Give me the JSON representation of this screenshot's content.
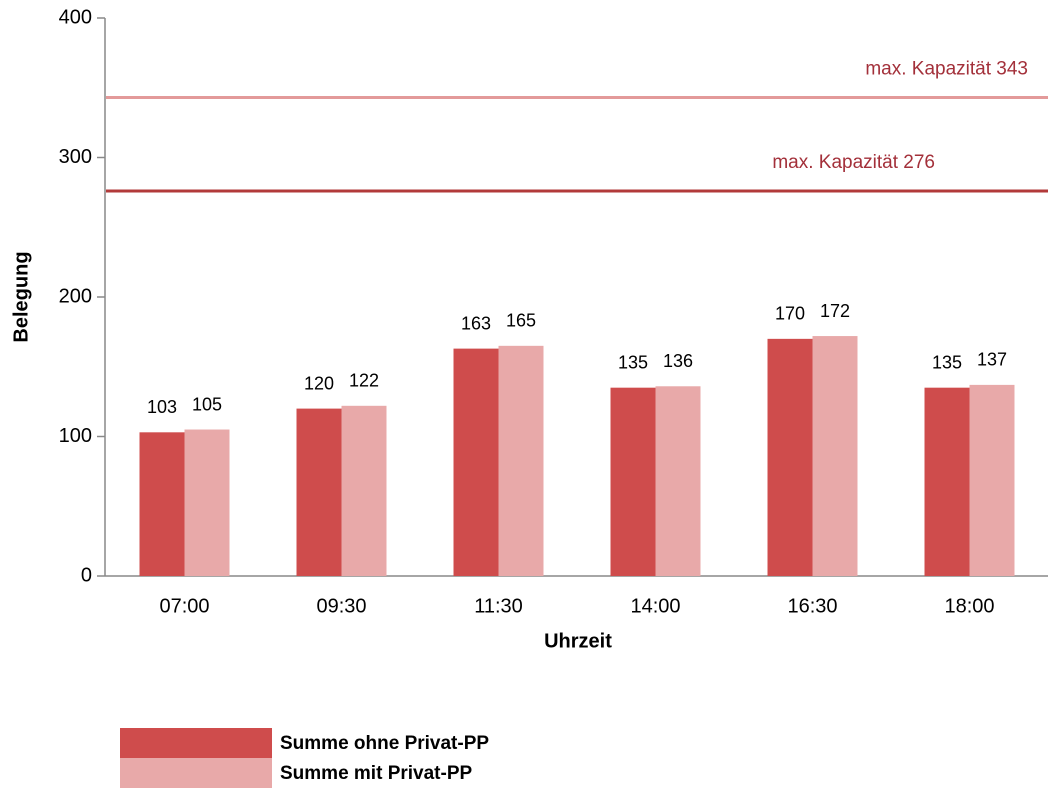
{
  "chart_data": {
    "type": "bar",
    "categories": [
      "07:00",
      "09:30",
      "11:30",
      "14:00",
      "16:30",
      "18:00"
    ],
    "series": [
      {
        "name": "Summe ohne Privat-PP",
        "color": "#cf4c4c",
        "values": [
          103,
          120,
          163,
          135,
          170,
          135
        ]
      },
      {
        "name": "Summe mit Privat-PP",
        "color": "#e8a9a9",
        "values": [
          105,
          122,
          165,
          136,
          172,
          137
        ]
      }
    ],
    "ylim": [
      0,
      400
    ],
    "yticks": [
      0,
      100,
      200,
      300,
      400
    ],
    "xlabel": "Uhrzeit",
    "ylabel": "Belegung",
    "reference_lines": [
      {
        "value": 343,
        "label": "max. Kapazität 343",
        "color": "#e39a9a"
      },
      {
        "value": 276,
        "label": "max. Kapazität 276",
        "color": "#b23a3a"
      }
    ],
    "grid": false,
    "legend": "bottom-left"
  }
}
